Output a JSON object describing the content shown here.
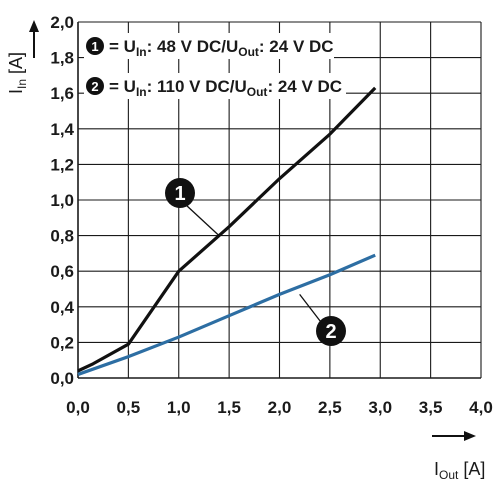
{
  "chart_data": {
    "type": "line",
    "x_axis": {
      "label": "I",
      "label_sub": "Out",
      "unit": "[A]",
      "ticks": [
        "0,0",
        "0,5",
        "1,0",
        "1,5",
        "2,0",
        "2,5",
        "3,0",
        "3,5",
        "4,0"
      ],
      "range": [
        0,
        4
      ]
    },
    "y_axis": {
      "label": "I",
      "label_sub": "In",
      "unit": "[A]",
      "ticks": [
        "0,0",
        "0,2",
        "0,4",
        "0,6",
        "0,8",
        "1,0",
        "1,2",
        "1,4",
        "1,6",
        "1,8",
        "2,0"
      ],
      "range": [
        0,
        2
      ]
    },
    "grid": true,
    "legend_position": "top-left",
    "legend": [
      {
        "marker": "1",
        "parts": [
          [
            "= U",
            ""
          ],
          [
            "In",
            "sub"
          ],
          [
            ": 48 V DC/U",
            ""
          ],
          [
            "Out",
            "sub"
          ],
          [
            ": 24 V DC",
            ""
          ]
        ]
      },
      {
        "marker": "2",
        "parts": [
          [
            "= U",
            ""
          ],
          [
            "In",
            "sub"
          ],
          [
            ": 110 V DC/U",
            ""
          ],
          [
            "Out",
            "sub"
          ],
          [
            ": 24 V DC",
            ""
          ]
        ]
      }
    ],
    "series": [
      {
        "marker": "1",
        "color": "#111111",
        "x": [
          0,
          0.15,
          0.5,
          1.0,
          1.5,
          2.0,
          2.5,
          2.95
        ],
        "y": [
          0.04,
          0.08,
          0.19,
          0.6,
          0.85,
          1.12,
          1.37,
          1.63
        ],
        "label_at": [
          1.4,
          0.8
        ]
      },
      {
        "marker": "2",
        "color": "#2d6ea3",
        "x": [
          0,
          0.5,
          1.0,
          1.5,
          2.0,
          2.5,
          2.95
        ],
        "y": [
          0.02,
          0.12,
          0.23,
          0.35,
          0.47,
          0.58,
          0.69
        ],
        "label_at": [
          2.2,
          0.47
        ]
      }
    ],
    "axis_arrow_color": "#111111"
  }
}
